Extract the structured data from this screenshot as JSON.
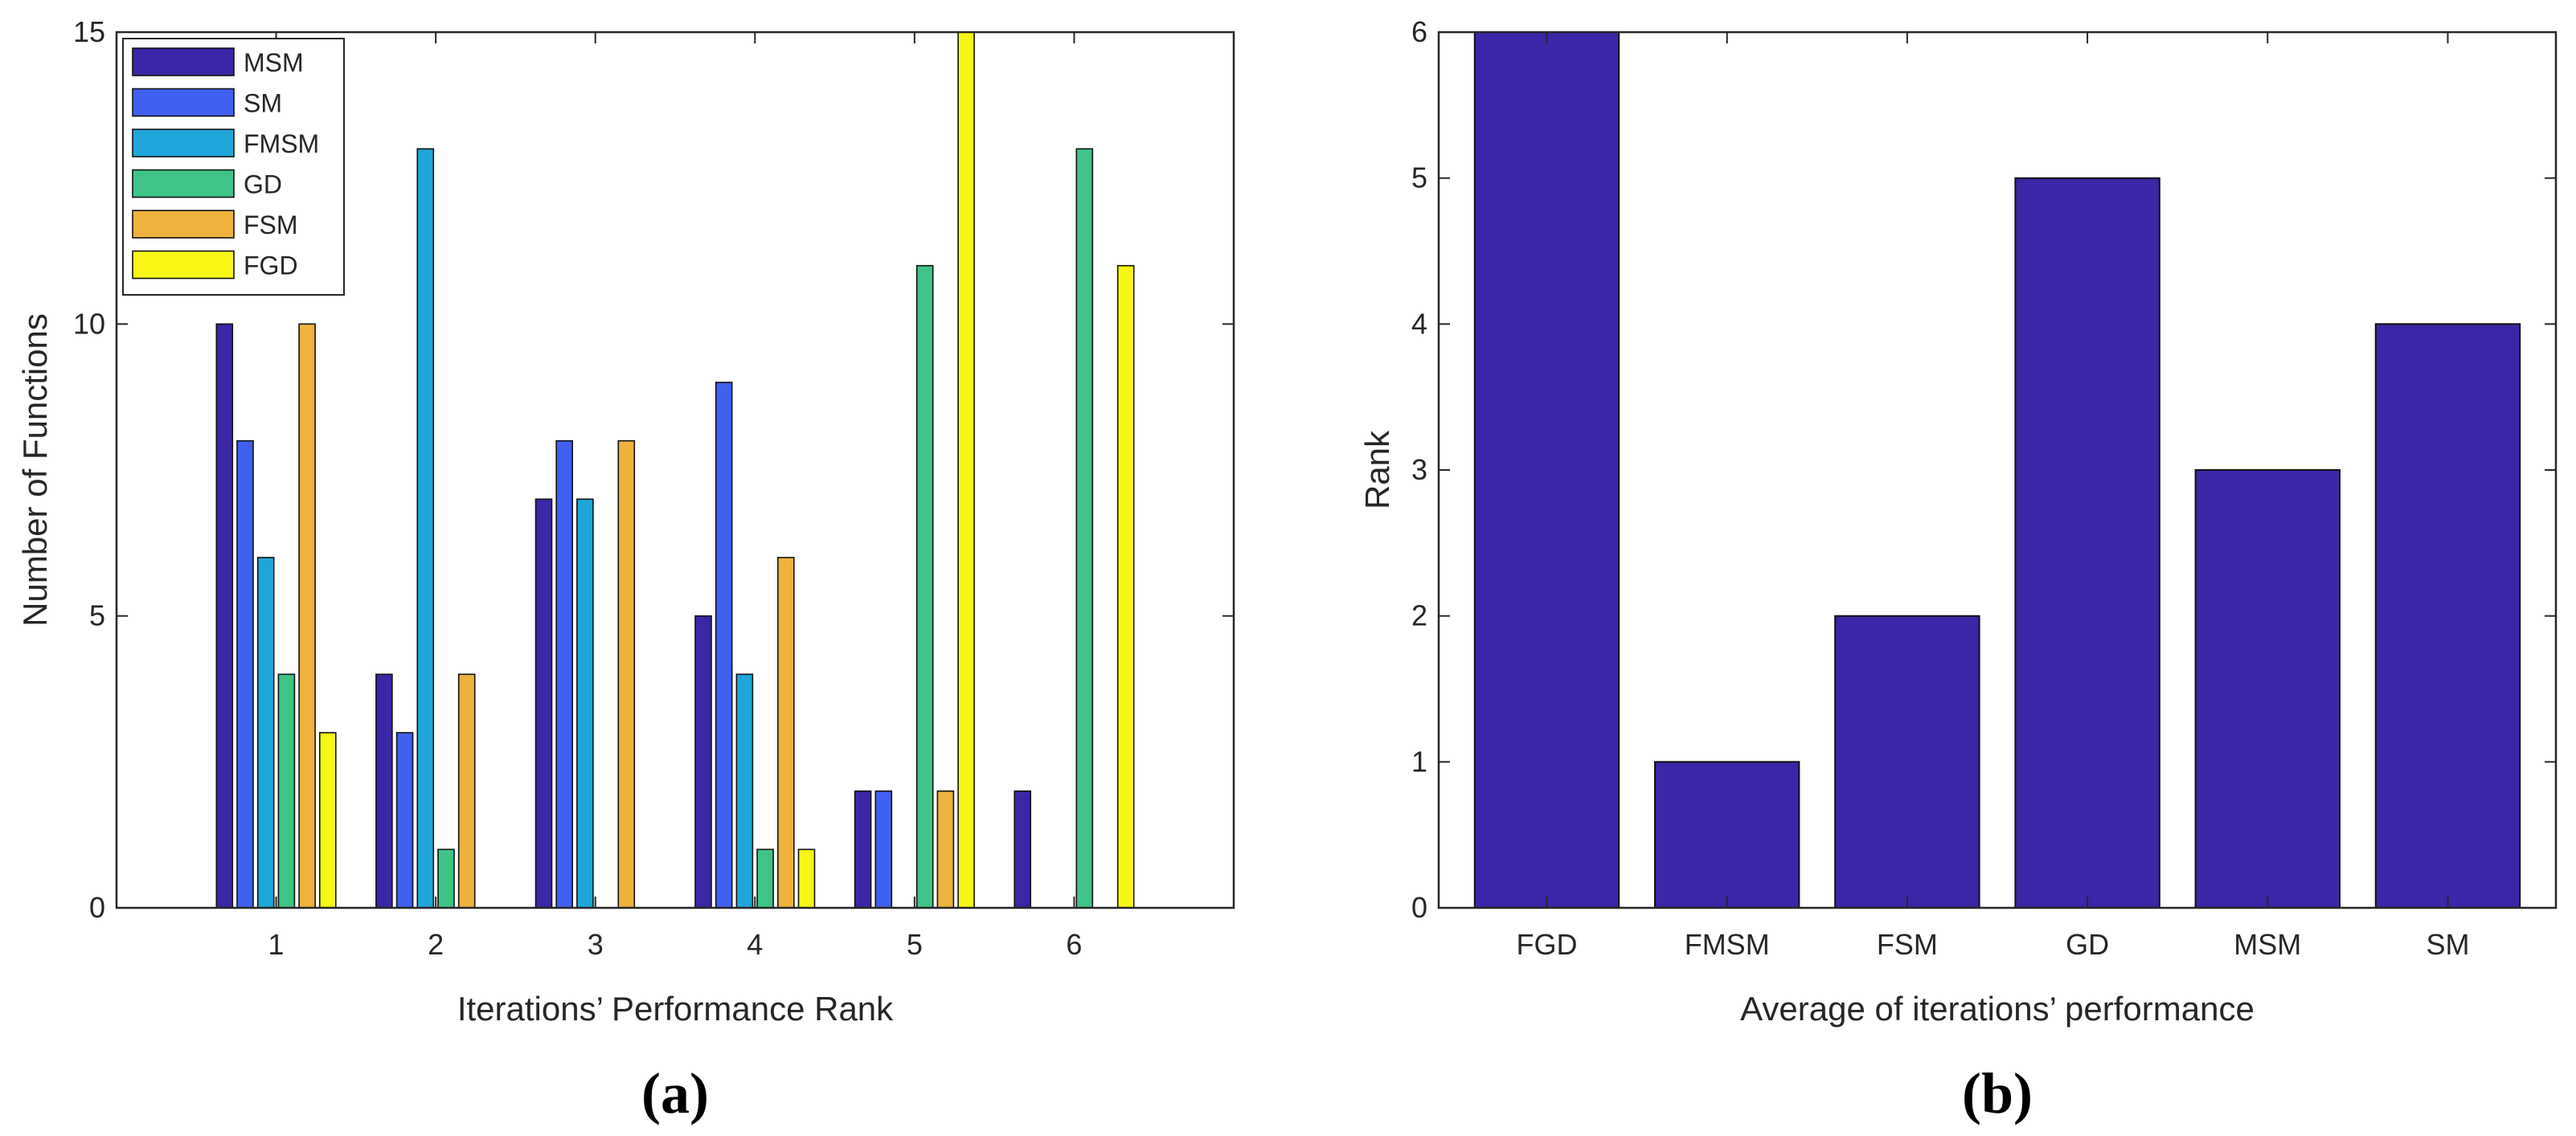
{
  "chart_data": [
    {
      "type": "bar",
      "caption": "(a)",
      "xlabel": "Iterations’ Performance Rank",
      "ylabel": "Number of Functions",
      "categories": [
        "1",
        "2",
        "3",
        "4",
        "5",
        "6"
      ],
      "ylim": [
        0,
        15
      ],
      "yticks": [
        "0",
        "5",
        "10",
        "15"
      ],
      "xlim": [
        0,
        7
      ],
      "legend_position": "top-left",
      "series": [
        {
          "name": "MSM",
          "color": "#3a26a6",
          "values": [
            10,
            4,
            7,
            5,
            2,
            2
          ]
        },
        {
          "name": "SM",
          "color": "#4060ef",
          "values": [
            8,
            3,
            8,
            9,
            2,
            0
          ]
        },
        {
          "name": "FMSM",
          "color": "#1ea6db",
          "values": [
            6,
            13,
            7,
            4,
            0,
            0
          ]
        },
        {
          "name": "GD",
          "color": "#3ec487",
          "values": [
            4,
            1,
            0,
            1,
            11,
            13
          ]
        },
        {
          "name": "FSM",
          "color": "#eeb23d",
          "values": [
            10,
            4,
            8,
            6,
            2,
            0
          ]
        },
        {
          "name": "FGD",
          "color": "#f8f614",
          "values": [
            3,
            0,
            0,
            1,
            15,
            11
          ]
        }
      ]
    },
    {
      "type": "bar",
      "caption": "(b)",
      "xlabel": "Average of iterations’ performance",
      "ylabel": "Rank",
      "categories": [
        "FGD",
        "FMSM",
        "FSM",
        "GD",
        "MSM",
        "SM"
      ],
      "values": [
        6,
        1,
        2,
        5,
        3,
        4
      ],
      "color": "#3a26a6",
      "ylim": [
        0,
        6
      ],
      "yticks": [
        "0",
        "1",
        "2",
        "3",
        "4",
        "5",
        "6"
      ]
    }
  ]
}
